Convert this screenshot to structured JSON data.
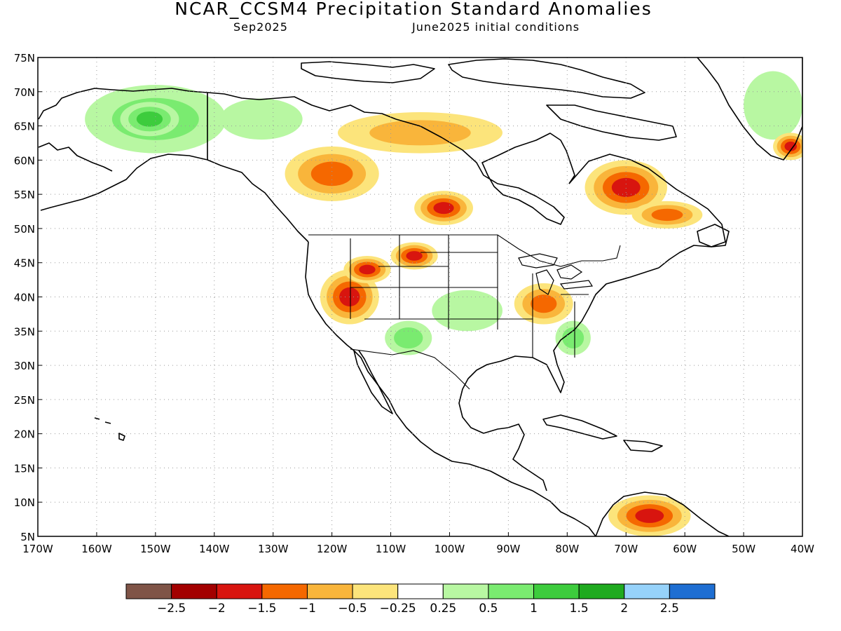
{
  "title": "NCAR_CCSM4 Precipitation Standard Anomalies",
  "subtitle_left": "Sep2025",
  "subtitle_right": "June2025 initial conditions",
  "map": {
    "lon_range": [
      -170,
      -40
    ],
    "lat_range": [
      5,
      75
    ],
    "lat_ticks": [
      "5N",
      "10N",
      "15N",
      "20N",
      "25N",
      "30N",
      "35N",
      "40N",
      "45N",
      "50N",
      "55N",
      "60N",
      "65N",
      "70N",
      "75N"
    ],
    "lon_ticks": [
      "170W",
      "160W",
      "150W",
      "140W",
      "130W",
      "120W",
      "110W",
      "100W",
      "90W",
      "80W",
      "70W",
      "60W",
      "50W",
      "40W"
    ],
    "grid": "dotted",
    "anomaly_regions": [
      {
        "name": "alaska-wet",
        "lon": -150,
        "lat": 66,
        "rx": 12,
        "ry": 5,
        "class": 2
      },
      {
        "name": "alaska-core",
        "lon": -151,
        "lat": 66,
        "rx": 5,
        "ry": 2.5,
        "class": 3
      },
      {
        "name": "yukon-wet",
        "lon": -132,
        "lat": 66,
        "rx": 7,
        "ry": 3,
        "class": 1
      },
      {
        "name": "bc-dry",
        "lon": -120,
        "lat": 58,
        "rx": 8,
        "ry": 4,
        "class": -3
      },
      {
        "name": "nw-territories-dry",
        "lon": -105,
        "lat": 64,
        "rx": 14,
        "ry": 3,
        "class": -2
      },
      {
        "name": "ontario-dry",
        "lon": -101,
        "lat": 53,
        "rx": 5,
        "ry": 2.5,
        "class": -4
      },
      {
        "name": "quebec-dry",
        "lon": -70,
        "lat": 56,
        "rx": 7,
        "ry": 4,
        "class": -4
      },
      {
        "name": "labrador-dry",
        "lon": -63,
        "lat": 52,
        "rx": 6,
        "ry": 2,
        "class": -3
      },
      {
        "name": "great-basin-dry",
        "lon": -117,
        "lat": 40,
        "rx": 5,
        "ry": 4,
        "class": -4
      },
      {
        "name": "idaho-dry",
        "lon": -114,
        "lat": 44,
        "rx": 4,
        "ry": 2,
        "class": -4
      },
      {
        "name": "montana-dry",
        "lon": -106,
        "lat": 46,
        "rx": 4,
        "ry": 2,
        "class": -4
      },
      {
        "name": "new-mexico-wet",
        "lon": -107,
        "lat": 34,
        "rx": 4,
        "ry": 2.5,
        "class": 2
      },
      {
        "name": "plains-wet",
        "lon": -97,
        "lat": 38,
        "rx": 6,
        "ry": 3,
        "class": 1
      },
      {
        "name": "ohio-valley-dry",
        "lon": -84,
        "lat": 39,
        "rx": 5,
        "ry": 3,
        "class": -3
      },
      {
        "name": "carolina-wet",
        "lon": -79,
        "lat": 34,
        "rx": 3,
        "ry": 2.5,
        "class": 2
      },
      {
        "name": "venezuela-dry",
        "lon": -66,
        "lat": 8,
        "rx": 7,
        "ry": 3,
        "class": -4
      },
      {
        "name": "greenland-wet",
        "lon": -45,
        "lat": 68,
        "rx": 5,
        "ry": 5,
        "class": 1
      },
      {
        "name": "greenland-dry",
        "lon": -42,
        "lat": 62,
        "rx": 3,
        "ry": 2,
        "class": -4
      }
    ]
  },
  "colorbar": {
    "colors": [
      "#7f5447",
      "#a30000",
      "#d8150f",
      "#f56800",
      "#f9b53b",
      "#fce47b",
      "#ffffff",
      "#b8f7a2",
      "#7aeb70",
      "#3dcc3d",
      "#1faa1f",
      "#96d2fa",
      "#1e6ed2"
    ],
    "labels": [
      "−2.5",
      "−2",
      "−1.5",
      "−1",
      "−0.5",
      "−0.25",
      "0.25",
      "0.5",
      "1",
      "1.5",
      "2",
      "2.5"
    ]
  }
}
